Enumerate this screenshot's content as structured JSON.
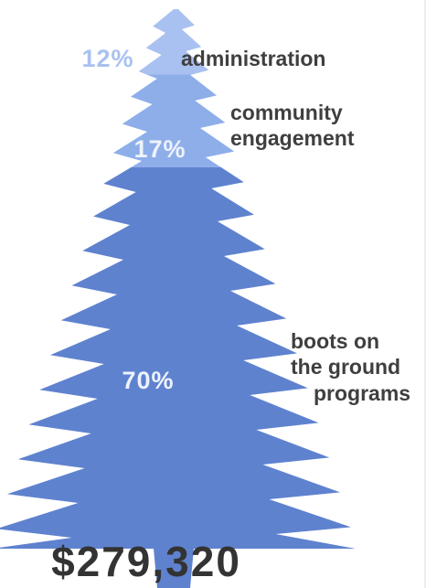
{
  "chart_data": {
    "type": "tree",
    "categories": [
      [
        "administration"
      ],
      [
        "community",
        "engagement"
      ],
      [
        "boots on",
        "the ground",
        "programs"
      ]
    ],
    "values": [
      12,
      17,
      70
    ],
    "value_labels": [
      "12%",
      "17%",
      "70%"
    ],
    "colors": [
      "#a9c1f0",
      "#8eaeea",
      "#5f82cf"
    ],
    "total": "$279,320"
  }
}
